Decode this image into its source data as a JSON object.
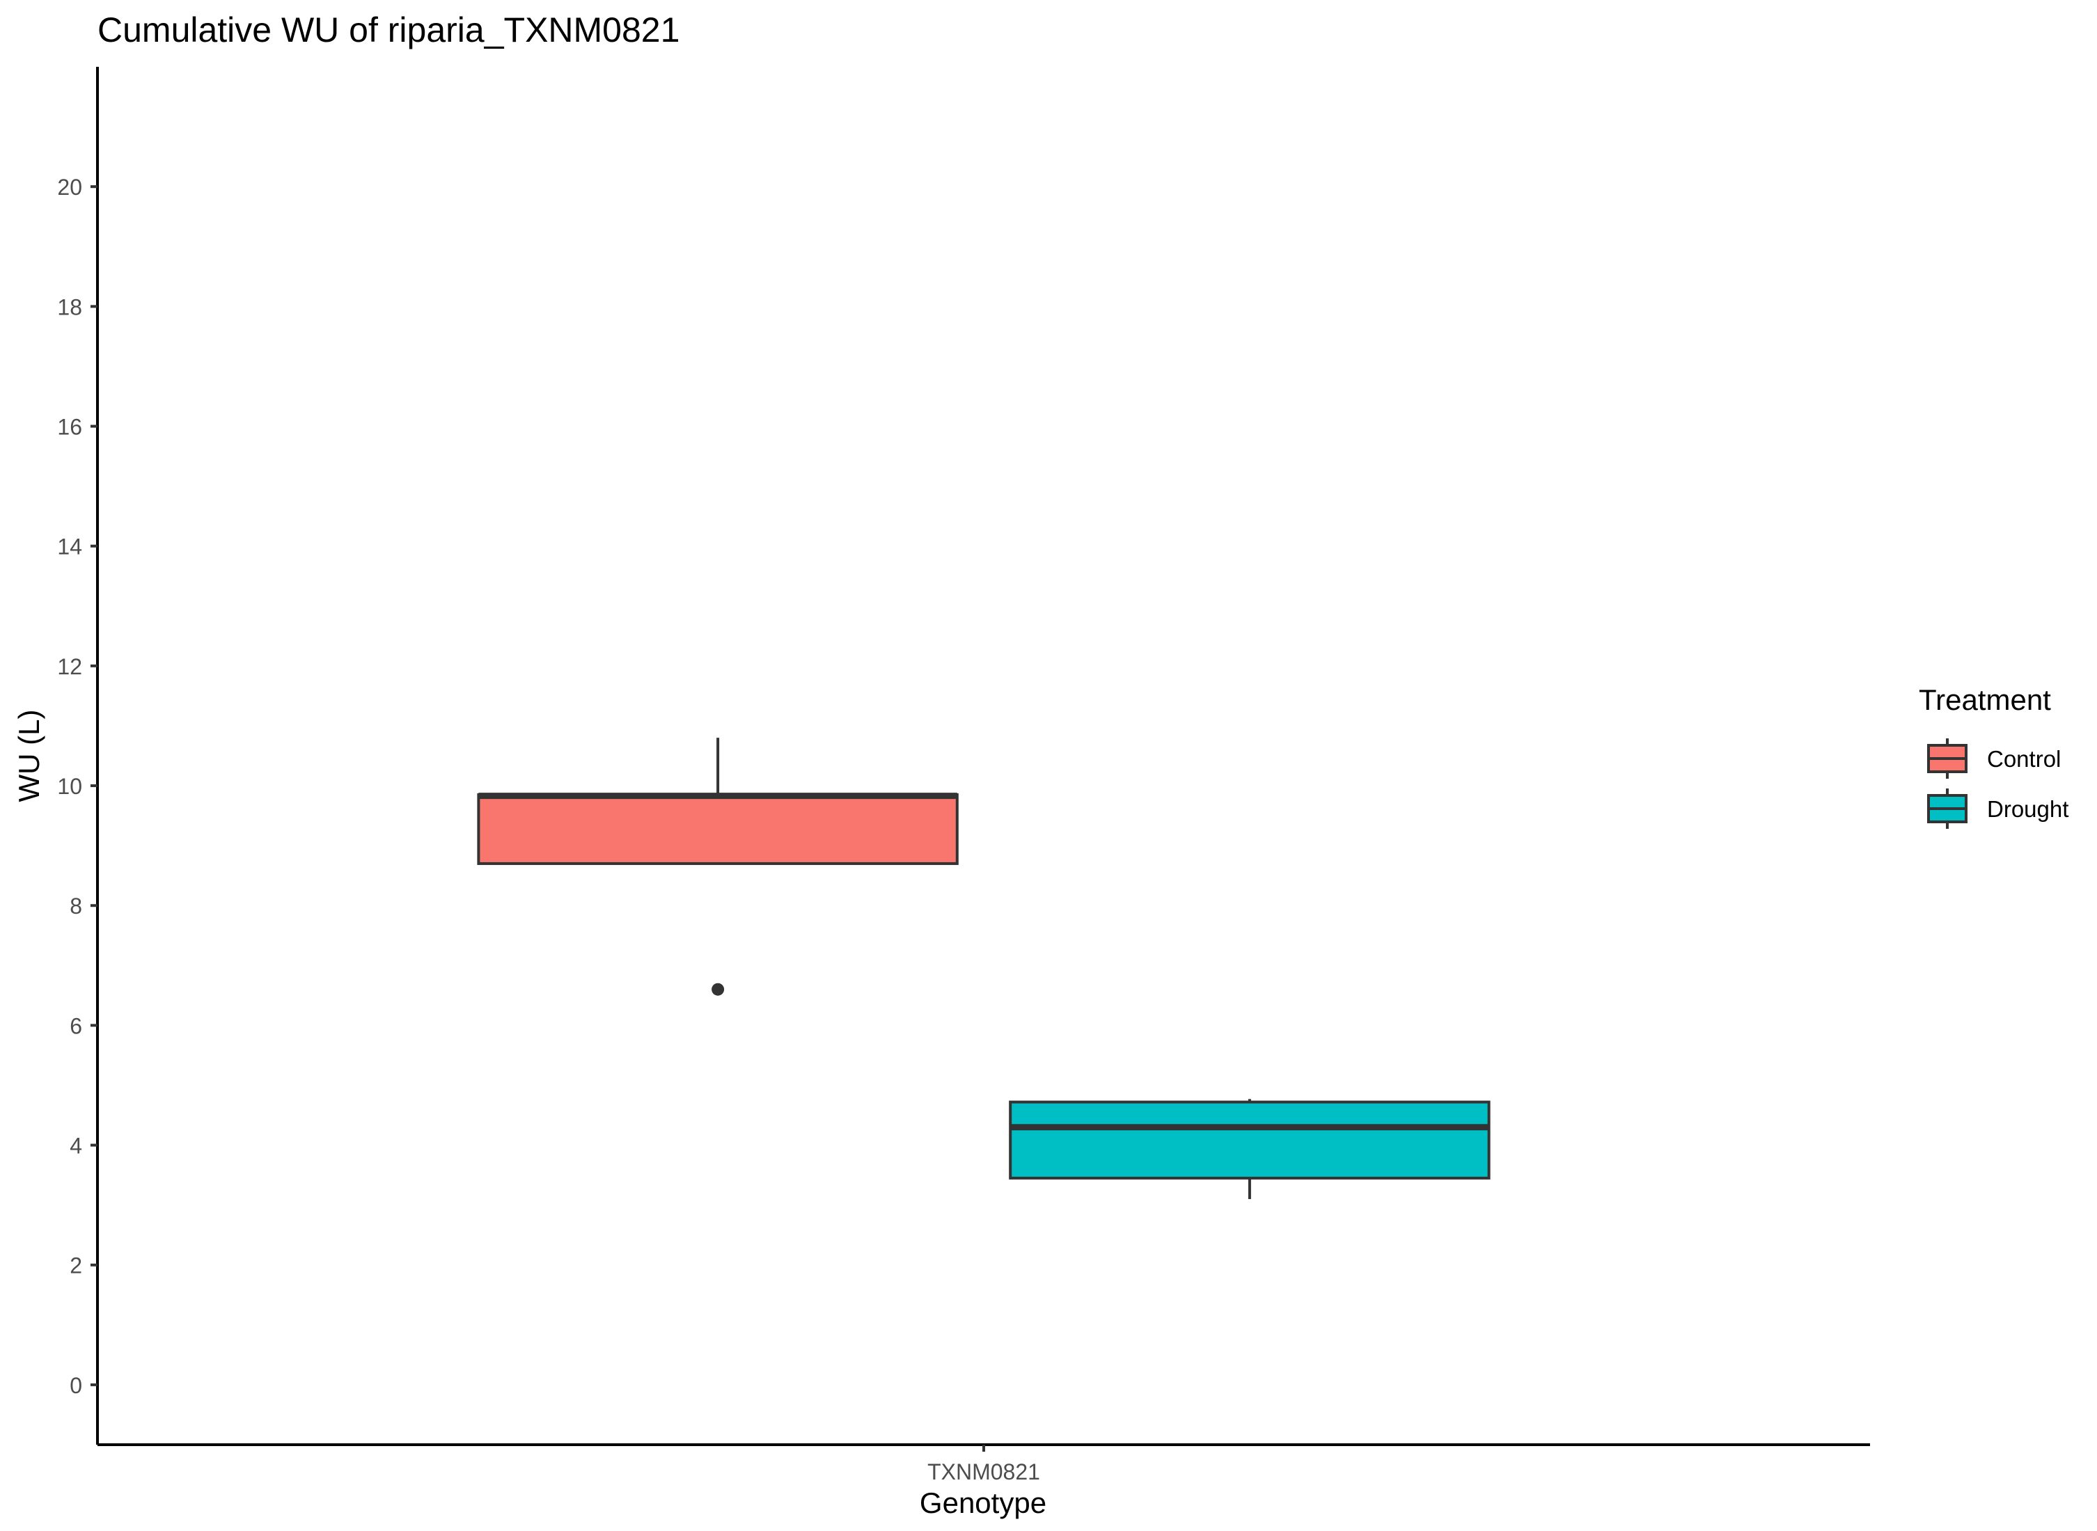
{
  "chart_data": {
    "type": "boxplot",
    "title": "Cumulative WU of riparia_TXNM0821",
    "xlabel": "Genotype",
    "ylabel": "WU (L)",
    "categories": [
      "TXNM0821"
    ],
    "ylim": [
      -1.0,
      22.0
    ],
    "yticks": [
      0,
      2,
      4,
      6,
      8,
      10,
      12,
      14,
      16,
      18,
      20
    ],
    "grid": false,
    "legend": {
      "title": "Treatment",
      "position": "right"
    },
    "series": [
      {
        "name": "Control",
        "color": "#F8766D",
        "category": "TXNM0821",
        "whisker_low": 8.7,
        "q1": 8.7,
        "median": 9.83,
        "q3": 9.85,
        "whisker_high": 10.8,
        "outliers": [
          6.6
        ]
      },
      {
        "name": "Drought",
        "color": "#00BFC4",
        "category": "TXNM0821",
        "whisker_low": 3.1,
        "q1": 3.45,
        "median": 4.3,
        "q3": 4.72,
        "whisker_high": 4.77,
        "outliers": []
      }
    ]
  }
}
